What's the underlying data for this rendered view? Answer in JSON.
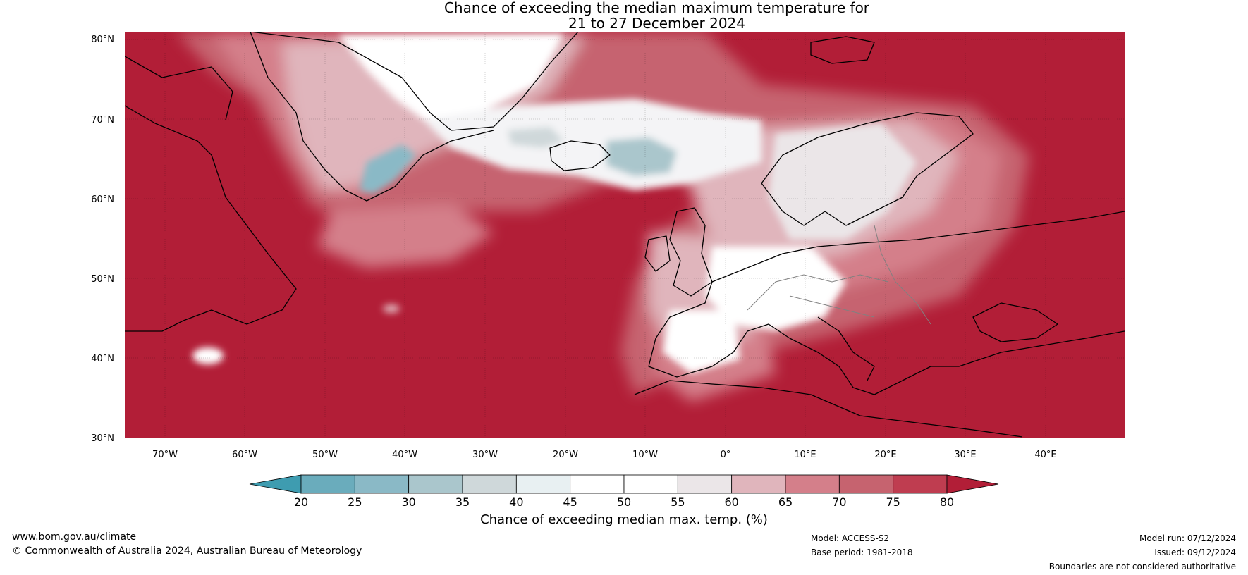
{
  "title_line1": "Chance of exceeding the median maximum temperature for",
  "title_line2": "21 to 27 December 2024",
  "latitude_labels": [
    "80°N",
    "70°N",
    "60°N",
    "50°N",
    "40°N",
    "30°N"
  ],
  "longitude_labels": [
    "70°W",
    "60°W",
    "50°W",
    "40°W",
    "30°W",
    "20°W",
    "10°W",
    "0°",
    "10°E",
    "20°E",
    "30°E",
    "40°E"
  ],
  "colorbar": {
    "ticks": [
      "20",
      "25",
      "30",
      "35",
      "40",
      "45",
      "50",
      "55",
      "60",
      "65",
      "70",
      "75",
      "80"
    ],
    "colors": [
      "#3e9cb0",
      "#6aacbc",
      "#8ab9c6",
      "#aac6cc",
      "#cfd8da",
      "#e8f0f2",
      "#ffffff",
      "#ffffff",
      "#ebe6e8",
      "#e0b5bc",
      "#d47f8a",
      "#c6636f",
      "#bf3d50",
      "#b21e37"
    ],
    "title": "Chance of exceeding median max. temp. (%)"
  },
  "palette": {
    "high": "#b21e37",
    "mid_high": "#c6636f",
    "mid": "#e0b5bc",
    "neutral": "#ffffff",
    "low": "#8ab9c6",
    "coast": "#000000",
    "borders": "#808080"
  },
  "footer": {
    "website": "www.bom.gov.au/climate",
    "copyright": "© Commonwealth of Australia 2024, Australian Bureau of Meteorology",
    "model": "Model: ACCESS-S2",
    "base_period": "Base period: 1981-2018",
    "model_run": "Model run: 07/12/2024",
    "issued": "Issued: 09/12/2024",
    "disclaimer": "Boundaries are not considered authoritative"
  }
}
